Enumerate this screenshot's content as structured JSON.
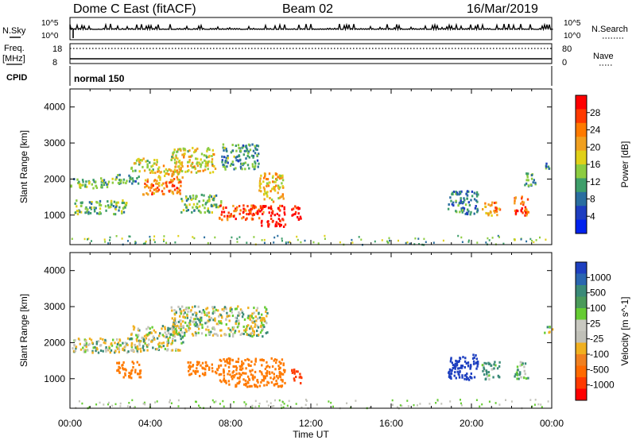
{
  "header": {
    "title": "Dome C East (fitACF)",
    "beam": "Beam 02",
    "date": "16/Mar/2019"
  },
  "strips": {
    "nsky": {
      "label": "N.Sky",
      "ticks_left": [
        "10^5",
        "10^0"
      ],
      "ticks_right": [
        "10^5",
        "10^0"
      ],
      "right_label": "N.Search"
    },
    "freq": {
      "label_line1": "Freq.",
      "label_line2": "[MHz]",
      "ticks_left": [
        "18",
        "8"
      ],
      "ticks_right": [
        "80",
        "0"
      ],
      "right_label": "Nave"
    },
    "cpid": {
      "label": "CPID",
      "value": "normal 150"
    }
  },
  "panels": {
    "ylabel": "Slant Range [km]",
    "xlabel": "Time UT",
    "yticks": [
      "4000",
      "3000",
      "2000",
      "1000"
    ],
    "xticks": [
      "00:00",
      "04:00",
      "08:00",
      "12:00",
      "16:00",
      "20:00",
      "00:00"
    ]
  },
  "power_bar": {
    "label": "Power [dB]",
    "ticks": [
      "28",
      "24",
      "20",
      "16",
      "12",
      "8",
      "4"
    ],
    "colors": [
      "#ff0000",
      "#ff3a00",
      "#ff7a00",
      "#f0a020",
      "#e0d018",
      "#8ccc40",
      "#3e9e6a",
      "#2a6ea0",
      "#1e3ec0",
      "#0022ee"
    ]
  },
  "velocity_bar": {
    "label": "Velocity [m s^-1]",
    "ticks": [
      "1000",
      "500",
      "100",
      "25",
      "-25",
      "-100",
      "-500",
      "-1000"
    ],
    "colors": [
      "#1e40c0",
      "#2a66b0",
      "#3a8a78",
      "#4a9a5a",
      "#66cc33",
      "#c8c8c0",
      "#c0c0b8",
      "#f0b020",
      "#f08020",
      "#ff6a00",
      "#ff3a00",
      "#ff0000"
    ]
  },
  "chart_data": [
    {
      "type": "heatmap",
      "name": "power",
      "x_range_hours": [
        0,
        24
      ],
      "y_range_km": [
        180,
        4500
      ],
      "clusters": [
        {
          "t": [
            0.0,
            1.9
          ],
          "r": [
            1750,
            2050
          ],
          "v": 14
        },
        {
          "t": [
            1.9,
            3.4
          ],
          "r": [
            1900,
            2150
          ],
          "v": 12
        },
        {
          "t": [
            0.2,
            2.8
          ],
          "r": [
            1050,
            1450
          ],
          "v": 14
        },
        {
          "t": [
            3.0,
            4.3
          ],
          "r": [
            2200,
            2600
          ],
          "v": 16
        },
        {
          "t": [
            3.6,
            5.6
          ],
          "r": [
            1600,
            2050
          ],
          "v": 24
        },
        {
          "t": [
            4.3,
            5.6
          ],
          "r": [
            2000,
            2400
          ],
          "v": 20
        },
        {
          "t": [
            5.0,
            7.2
          ],
          "r": [
            2200,
            2900
          ],
          "v": 18
        },
        {
          "t": [
            5.5,
            7.5
          ],
          "r": [
            1100,
            1600
          ],
          "v": 14
        },
        {
          "t": [
            7.5,
            9.4
          ],
          "r": [
            2300,
            3000
          ],
          "v": 12
        },
        {
          "t": [
            7.4,
            9.6
          ],
          "r": [
            900,
            1300
          ],
          "v": 26
        },
        {
          "t": [
            9.4,
            10.7
          ],
          "r": [
            700,
            1300
          ],
          "v": 30
        },
        {
          "t": [
            9.3,
            10.6
          ],
          "r": [
            1400,
            2200
          ],
          "v": 20
        },
        {
          "t": [
            11.0,
            11.5
          ],
          "r": [
            900,
            1300
          ],
          "v": 30
        },
        {
          "t": [
            18.8,
            20.3
          ],
          "r": [
            1050,
            1700
          ],
          "v": 10
        },
        {
          "t": [
            20.5,
            21.4
          ],
          "r": [
            1000,
            1400
          ],
          "v": 22
        },
        {
          "t": [
            22.1,
            22.8
          ],
          "r": [
            1000,
            1550
          ],
          "v": 26
        },
        {
          "t": [
            22.6,
            23.2
          ],
          "r": [
            1800,
            2200
          ],
          "v": 12
        },
        {
          "t": [
            23.6,
            24.0
          ],
          "r": [
            2300,
            2500
          ],
          "v": 10
        }
      ]
    },
    {
      "type": "heatmap",
      "name": "velocity",
      "x_range_hours": [
        0,
        24
      ],
      "y_range_km": [
        180,
        4500
      ],
      "clusters": [
        {
          "t": [
            0.0,
            3.5
          ],
          "r": [
            1750,
            2150
          ],
          "v": 0
        },
        {
          "t": [
            3.0,
            5.6
          ],
          "r": [
            1800,
            2500
          ],
          "v": 0
        },
        {
          "t": [
            5.0,
            9.8
          ],
          "r": [
            2200,
            3050
          ],
          "v": 0
        },
        {
          "t": [
            2.3,
            3.5
          ],
          "r": [
            1050,
            1500
          ],
          "v": -300
        },
        {
          "t": [
            5.8,
            7.4
          ],
          "r": [
            1100,
            1500
          ],
          "v": -300
        },
        {
          "t": [
            7.4,
            10.7
          ],
          "r": [
            800,
            1600
          ],
          "v": -300
        },
        {
          "t": [
            11.0,
            11.5
          ],
          "r": [
            900,
            1300
          ],
          "v": -600
        },
        {
          "t": [
            18.8,
            20.3
          ],
          "r": [
            1000,
            1700
          ],
          "v": 800
        },
        {
          "t": [
            20.5,
            21.4
          ],
          "r": [
            1000,
            1500
          ],
          "v": 80
        },
        {
          "t": [
            22.1,
            22.8
          ],
          "r": [
            1000,
            1500
          ],
          "v": 80
        },
        {
          "t": [
            23.6,
            24.0
          ],
          "r": [
            2300,
            2500
          ],
          "v": 0
        }
      ]
    }
  ]
}
